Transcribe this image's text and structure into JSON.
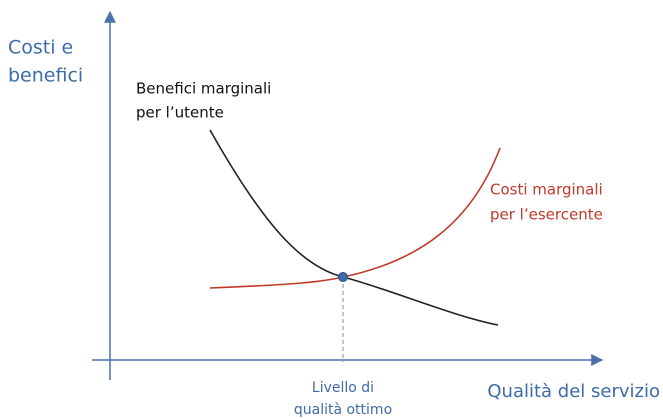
{
  "y_axis_label": [
    "Costi e",
    "benefici"
  ],
  "x_axis_label": "Qualità del servizio",
  "curves": [
    {
      "label": [
        "Benefici marginali",
        "per l’utente"
      ]
    },
    {
      "label": [
        "Costi marginali",
        "per l’esercente"
      ]
    }
  ],
  "optimum_label": [
    "Livello di",
    "qualità ottimo"
  ]
}
